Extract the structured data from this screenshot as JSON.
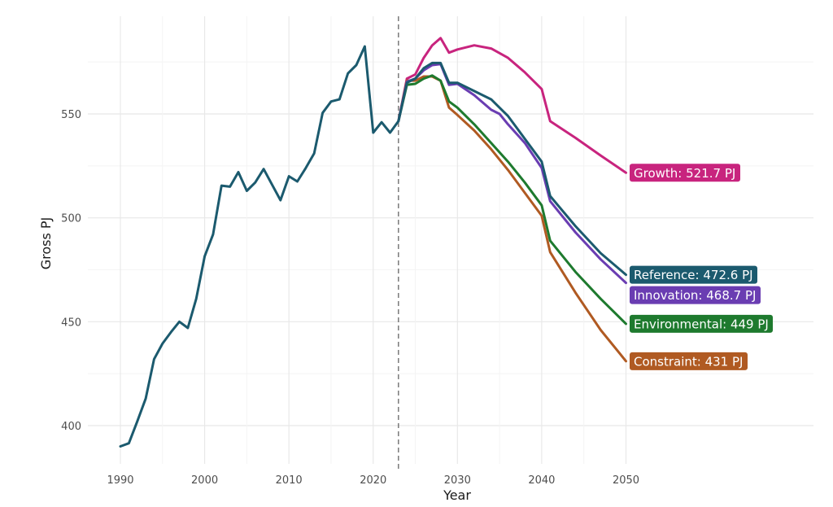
{
  "chart_data": {
    "type": "line",
    "xlabel": "Year",
    "ylabel": "Gross PJ",
    "xlim": [
      1990,
      2050
    ],
    "ylim": [
      388,
      597
    ],
    "x_ticks": [
      1990,
      2000,
      2010,
      2020,
      2030,
      2040,
      2050
    ],
    "y_ticks": [
      400,
      450,
      500,
      550
    ],
    "grid": true,
    "projection_start_year": 2023,
    "historical": {
      "color": "#1b5a6e",
      "points": [
        [
          1990,
          390
        ],
        [
          1991,
          391.5
        ],
        [
          1992,
          402
        ],
        [
          1993,
          413
        ],
        [
          1994,
          432
        ],
        [
          1995,
          439.5
        ],
        [
          1996,
          445
        ],
        [
          1997,
          450
        ],
        [
          1998,
          447
        ],
        [
          1999,
          461
        ],
        [
          2000,
          481.5
        ],
        [
          2001,
          492
        ],
        [
          2002,
          515.5
        ],
        [
          2003,
          515
        ],
        [
          2004,
          522
        ],
        [
          2005,
          513
        ],
        [
          2006,
          517
        ],
        [
          2007,
          523.5
        ],
        [
          2008,
          516
        ],
        [
          2009,
          508.5
        ],
        [
          2010,
          520
        ],
        [
          2011,
          517.5
        ],
        [
          2012,
          524
        ],
        [
          2013,
          531
        ],
        [
          2014,
          550.5
        ],
        [
          2015,
          556
        ],
        [
          2016,
          557
        ],
        [
          2017,
          569.5
        ],
        [
          2018,
          573.5
        ],
        [
          2019,
          582.5
        ],
        [
          2020,
          541
        ],
        [
          2021,
          546
        ],
        [
          2022,
          541
        ],
        [
          2023,
          546.5
        ]
      ]
    },
    "series": [
      {
        "name": "Growth",
        "label": "Growth: 521.7 PJ",
        "color": "#c8247e",
        "points": [
          [
            2023,
            546.5
          ],
          [
            2024,
            567
          ],
          [
            2025,
            569
          ],
          [
            2026,
            577
          ],
          [
            2027,
            583
          ],
          [
            2028,
            586.5
          ],
          [
            2029,
            579.5
          ],
          [
            2030,
            581
          ],
          [
            2032,
            583
          ],
          [
            2034,
            581.5
          ],
          [
            2036,
            577
          ],
          [
            2038,
            570
          ],
          [
            2040,
            562
          ],
          [
            2041,
            546.5
          ],
          [
            2044,
            538.5
          ],
          [
            2047,
            530
          ],
          [
            2050,
            521.7
          ]
        ]
      },
      {
        "name": "Reference",
        "label": "Reference: 472.6 PJ",
        "color": "#1b5a6e",
        "points": [
          [
            2023,
            546.5
          ],
          [
            2024,
            565
          ],
          [
            2025,
            567
          ],
          [
            2026,
            572
          ],
          [
            2027,
            574.5
          ],
          [
            2028,
            574.5
          ],
          [
            2029,
            565
          ],
          [
            2030,
            565
          ],
          [
            2032,
            561
          ],
          [
            2034,
            557
          ],
          [
            2036,
            549
          ],
          [
            2038,
            538
          ],
          [
            2040,
            527
          ],
          [
            2041,
            510.5
          ],
          [
            2044,
            496
          ],
          [
            2047,
            483
          ],
          [
            2050,
            472.6
          ]
        ]
      },
      {
        "name": "Innovation",
        "label": "Innovation: 468.7 PJ",
        "color": "#6a3db2",
        "points": [
          [
            2023,
            546.5
          ],
          [
            2024,
            565.5
          ],
          [
            2025,
            567
          ],
          [
            2026,
            571
          ],
          [
            2027,
            573.5
          ],
          [
            2028,
            574
          ],
          [
            2029,
            564
          ],
          [
            2030,
            564.5
          ],
          [
            2032,
            559
          ],
          [
            2034,
            552
          ],
          [
            2035,
            550
          ],
          [
            2036,
            545
          ],
          [
            2038,
            536
          ],
          [
            2040,
            524
          ],
          [
            2041,
            508
          ],
          [
            2044,
            493
          ],
          [
            2047,
            480
          ],
          [
            2050,
            468.7
          ]
        ]
      },
      {
        "name": "Environmental",
        "label": "Environmental: 449 PJ",
        "color": "#1e7a2e",
        "points": [
          [
            2023,
            546.5
          ],
          [
            2024,
            564
          ],
          [
            2025,
            564.5
          ],
          [
            2026,
            567
          ],
          [
            2027,
            568.5
          ],
          [
            2028,
            566
          ],
          [
            2029,
            556
          ],
          [
            2030,
            553
          ],
          [
            2032,
            545
          ],
          [
            2034,
            536
          ],
          [
            2036,
            527
          ],
          [
            2038,
            517
          ],
          [
            2040,
            506
          ],
          [
            2041,
            489
          ],
          [
            2044,
            474
          ],
          [
            2047,
            461
          ],
          [
            2050,
            449
          ]
        ]
      },
      {
        "name": "Constraint",
        "label": "Constraint: 431 PJ",
        "color": "#b05a22",
        "points": [
          [
            2023,
            546.5
          ],
          [
            2024,
            566
          ],
          [
            2025,
            566
          ],
          [
            2026,
            568
          ],
          [
            2027,
            568
          ],
          [
            2028,
            566
          ],
          [
            2029,
            553
          ],
          [
            2030,
            549.5
          ],
          [
            2032,
            542
          ],
          [
            2034,
            533
          ],
          [
            2036,
            523
          ],
          [
            2038,
            512
          ],
          [
            2040,
            501
          ],
          [
            2041,
            483.5
          ],
          [
            2044,
            464
          ],
          [
            2047,
            446
          ],
          [
            2050,
            431
          ]
        ]
      }
    ]
  }
}
